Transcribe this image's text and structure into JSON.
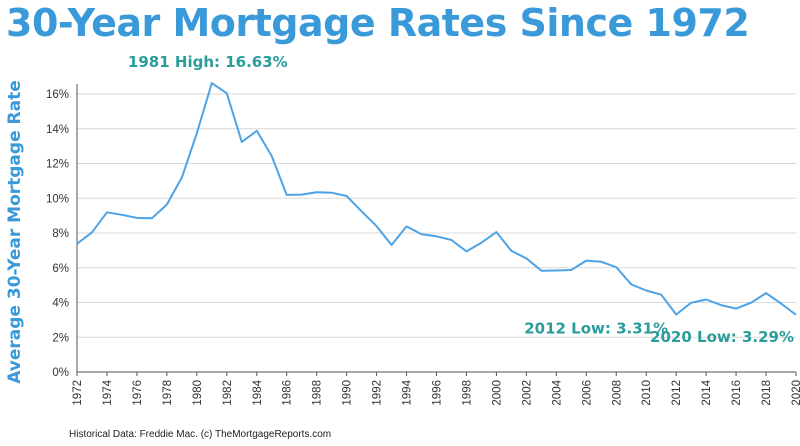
{
  "colors": {
    "accent": "#3a9ad9",
    "annotation": "#2a9d9a",
    "line": "#4da3e6",
    "grid": "#d9d9d9",
    "axis": "#555555"
  },
  "title": "30-Year Mortgage Rates Since 1972",
  "footer": "Historical Data: Freddie Mac.  (c) TheMortgageReports.com",
  "chart_data": {
    "type": "line",
    "title": "30-Year Mortgage Rates Since 1972",
    "xlabel": "",
    "ylabel": "Average 30-Year Mortgage Rate",
    "xlim": [
      1972,
      2020
    ],
    "ylim": [
      0,
      16
    ],
    "grid": "horizontal",
    "x_ticks": [
      1972,
      1974,
      1976,
      1978,
      1980,
      1982,
      1984,
      1986,
      1988,
      1990,
      1992,
      1994,
      1996,
      1998,
      2000,
      2002,
      2004,
      2006,
      2008,
      2010,
      2012,
      2014,
      2016,
      2018,
      2020
    ],
    "y_ticks": [
      0,
      2,
      4,
      6,
      8,
      10,
      12,
      14,
      16
    ],
    "y_tick_labels": [
      "0%",
      "2%",
      "4%",
      "6%",
      "8%",
      "10%",
      "12%",
      "14%",
      "16%"
    ],
    "series": [
      {
        "x": [
          1972,
          1973,
          1974,
          1975,
          1976,
          1977,
          1978,
          1979,
          1980,
          1981,
          1982,
          1983,
          1984,
          1985,
          1986,
          1987,
          1988,
          1989,
          1990,
          1991,
          1992,
          1993,
          1994,
          1995,
          1996,
          1997,
          1998,
          1999,
          2000,
          2001,
          2002,
          2003,
          2004,
          2005,
          2006,
          2007,
          2008,
          2009,
          2010,
          2011,
          2012,
          2013,
          2014,
          2015,
          2016,
          2017,
          2018,
          2019,
          2020
        ],
        "values": [
          7.38,
          8.04,
          9.19,
          9.05,
          8.87,
          8.85,
          9.64,
          11.2,
          13.74,
          16.63,
          16.04,
          13.24,
          13.88,
          12.43,
          10.19,
          10.21,
          10.34,
          10.32,
          10.13,
          9.25,
          8.39,
          7.31,
          8.38,
          7.93,
          7.81,
          7.6,
          6.94,
          7.44,
          8.05,
          6.97,
          6.54,
          5.83,
          5.84,
          5.87,
          6.41,
          6.34,
          6.03,
          5.04,
          4.69,
          4.45,
          3.31,
          3.98,
          4.17,
          3.85,
          3.65,
          3.99,
          4.54,
          3.94,
          3.29
        ]
      }
    ],
    "annotations": [
      {
        "text": "1981 High: 16.63%",
        "x": 1981,
        "y": 16.63
      },
      {
        "text": "2012 Low: 3.31%",
        "x": 2012,
        "y": 3.31
      },
      {
        "text": "2020 Low: 3.29%",
        "x": 2020,
        "y": 3.29
      }
    ]
  }
}
